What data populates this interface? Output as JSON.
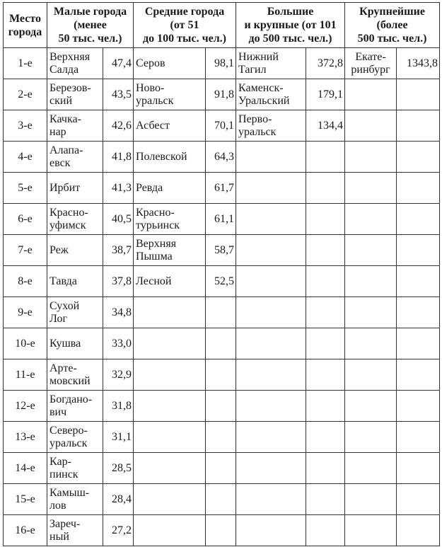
{
  "headers": [
    "Место\nгорода",
    "Малые города\n(менее\n50 тыс. чел.)",
    "Средние города\n(от 51\nдо 100 тыс. чел.)",
    "Большие\nи крупные (от 101\nдо 500 тыс. чел.)",
    "Крупнейшие\n(более\n500 тыс. чел.)"
  ],
  "rows": [
    {
      "place": "1-е",
      "small": "Верхняя\nСалда",
      "small_v": "47,4",
      "medium": "Серов",
      "medium_v": "98,1",
      "large": "Нижний\nТагил",
      "large_v": "372,8",
      "largest": "Екате-\nринбург",
      "largest_v": "1343,8"
    },
    {
      "place": "2-е",
      "small": "Березов-\nский",
      "small_v": "43,5",
      "medium": "Ново-\nуральск",
      "medium_v": "91,8",
      "large": "Каменск-\nУральский",
      "large_v": "179,1"
    },
    {
      "place": "3-е",
      "small": "Качка-\nнар",
      "small_v": "42,6",
      "medium": "Асбест",
      "medium_v": "70,1",
      "large": "Перво-\nуральск",
      "large_v": "134,4"
    },
    {
      "place": "4-е",
      "small": "Алапа-\nевск",
      "small_v": "41,8",
      "medium": "Полевской",
      "medium_v": "64,3"
    },
    {
      "place": "5-е",
      "small": "Ирбит",
      "small_v": "41,3",
      "medium": "Ревда",
      "medium_v": "61,7"
    },
    {
      "place": "6-е",
      "small": "Красно-\nуфимск",
      "small_v": "40,5",
      "medium": "Красно-\nтурьинск",
      "medium_v": "61,1"
    },
    {
      "place": "7-е",
      "small": "Реж",
      "small_v": "38,7",
      "medium": "Верхняя\nПышма",
      "medium_v": "58,7"
    },
    {
      "place": "8-е",
      "small": "Тавда",
      "small_v": "37,8",
      "medium": "Лесной",
      "medium_v": "52,5"
    },
    {
      "place": "9-е",
      "small": "Сухой\nЛог",
      "small_v": "34,8"
    },
    {
      "place": "10-е",
      "small": "Кушва",
      "small_v": "33,0"
    },
    {
      "place": "11-е",
      "small": "Арте-\nмовский",
      "small_v": "32,9"
    },
    {
      "place": "12-е",
      "small": "Богдано-\nвич",
      "small_v": "31,8"
    },
    {
      "place": "13-е",
      "small": "Северо-\nуральск",
      "small_v": "31,1"
    },
    {
      "place": "14-е",
      "small": "Кар-\nпинск",
      "small_v": "28,5"
    },
    {
      "place": "15-е",
      "small": "Камыш-\nлов",
      "small_v": "28,4"
    },
    {
      "place": "16-е",
      "small": "Зареч-\nный",
      "small_v": "27,2"
    }
  ]
}
